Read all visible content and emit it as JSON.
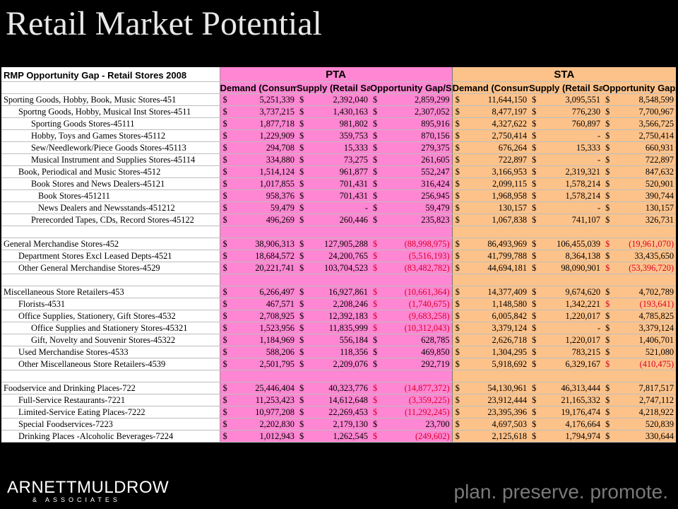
{
  "title": "Retail Market Potential",
  "table": {
    "caption": "RMP Opportunity Gap - Retail Stores 2008",
    "groups": {
      "pta": "PTA",
      "sta": "STA"
    },
    "columns": {
      "demand": "Demand (Consumer Expenditures)",
      "supply": "Supply (Retail Sales)",
      "opportunity": "Opportunity Gap/Surplus"
    },
    "currency_symbol": "$",
    "rows": [
      {
        "label": "Sporting Goods, Hobby, Book, Music Stores-451",
        "indent": 0,
        "pta": [
          "5,251,339",
          "2,392,040",
          "2,859,299"
        ],
        "sta": [
          "11,644,150",
          "3,095,551",
          "8,548,599"
        ]
      },
      {
        "label": "Sportng Goods, Hobby, Musical Inst Stores-4511",
        "indent": 1,
        "pta": [
          "3,737,215",
          "1,430,163",
          "2,307,052"
        ],
        "sta": [
          "8,477,197",
          "776,230",
          "7,700,967"
        ]
      },
      {
        "label": "Sporting Goods Stores-45111",
        "indent": 2,
        "pta": [
          "1,877,718",
          "981,802",
          "895,916"
        ],
        "sta": [
          "4,327,622",
          "760,897",
          "3,566,725"
        ]
      },
      {
        "label": "Hobby, Toys and Games Stores-45112",
        "indent": 2,
        "pta": [
          "1,229,909",
          "359,753",
          "870,156"
        ],
        "sta": [
          "2,750,414",
          "-",
          "2,750,414"
        ]
      },
      {
        "label": "Sew/Needlework/Piece Goods Stores-45113",
        "indent": 2,
        "pta": [
          "294,708",
          "15,333",
          "279,375"
        ],
        "sta": [
          "676,264",
          "15,333",
          "660,931"
        ]
      },
      {
        "label": "Musical Instrument and Supplies Stores-45114",
        "indent": 2,
        "pta": [
          "334,880",
          "73,275",
          "261,605"
        ],
        "sta": [
          "722,897",
          "-",
          "722,897"
        ]
      },
      {
        "label": "Book, Periodical and Music Stores-4512",
        "indent": 1,
        "pta": [
          "1,514,124",
          "961,877",
          "552,247"
        ],
        "sta": [
          "3,166,953",
          "2,319,321",
          "847,632"
        ]
      },
      {
        "label": "Book Stores and News Dealers-45121",
        "indent": 2,
        "pta": [
          "1,017,855",
          "701,431",
          "316,424"
        ],
        "sta": [
          "2,099,115",
          "1,578,214",
          "520,901"
        ]
      },
      {
        "label": "Book Stores-451211",
        "indent": 3,
        "pta": [
          "958,376",
          "701,431",
          "256,945"
        ],
        "sta": [
          "1,968,958",
          "1,578,214",
          "390,744"
        ]
      },
      {
        "label": "News Dealers and Newsstands-451212",
        "indent": 3,
        "pta": [
          "59,479",
          "-",
          "59,479"
        ],
        "sta": [
          "130,157",
          "-",
          "130,157"
        ]
      },
      {
        "label": "Prerecorded Tapes, CDs, Record Stores-45122",
        "indent": 2,
        "pta": [
          "496,269",
          "260,446",
          "235,823"
        ],
        "sta": [
          "1,067,838",
          "741,107",
          "326,731"
        ]
      },
      {
        "blank": true
      },
      {
        "label": "General Merchandise Stores-452",
        "indent": 0,
        "pta": [
          "38,906,313",
          "127,905,288",
          "(88,998,975)"
        ],
        "sta": [
          "86,493,969",
          "106,455,039",
          "(19,961,070)"
        ]
      },
      {
        "label": "Department Stores Excl Leased Depts-4521",
        "indent": 1,
        "pta": [
          "18,684,572",
          "24,200,765",
          "(5,516,193)"
        ],
        "sta": [
          "41,799,788",
          "8,364,138",
          "33,435,650"
        ]
      },
      {
        "label": "Other General Merchandise Stores-4529",
        "indent": 1,
        "pta": [
          "20,221,741",
          "103,704,523",
          "(83,482,782)"
        ],
        "sta": [
          "44,694,181",
          "98,090,901",
          "(53,396,720)"
        ]
      },
      {
        "blank": true
      },
      {
        "label": "Miscellaneous Store Retailers-453",
        "indent": 0,
        "pta": [
          "6,266,497",
          "16,927,861",
          "(10,661,364)"
        ],
        "sta": [
          "14,377,409",
          "9,674,620",
          "4,702,789"
        ]
      },
      {
        "label": "Florists-4531",
        "indent": 1,
        "pta": [
          "467,571",
          "2,208,246",
          "(1,740,675)"
        ],
        "sta": [
          "1,148,580",
          "1,342,221",
          "(193,641)"
        ]
      },
      {
        "label": "Office Supplies, Stationery, Gift Stores-4532",
        "indent": 1,
        "pta": [
          "2,708,925",
          "12,392,183",
          "(9,683,258)"
        ],
        "sta": [
          "6,005,842",
          "1,220,017",
          "4,785,825"
        ]
      },
      {
        "label": "Office Supplies and Stationery Stores-45321",
        "indent": 2,
        "pta": [
          "1,523,956",
          "11,835,999",
          "(10,312,043)"
        ],
        "sta": [
          "3,379,124",
          "-",
          "3,379,124"
        ]
      },
      {
        "label": "Gift, Novelty and Souvenir Stores-45322",
        "indent": 2,
        "pta": [
          "1,184,969",
          "556,184",
          "628,785"
        ],
        "sta": [
          "2,626,718",
          "1,220,017",
          "1,406,701"
        ]
      },
      {
        "label": "Used Merchandise Stores-4533",
        "indent": 1,
        "pta": [
          "588,206",
          "118,356",
          "469,850"
        ],
        "sta": [
          "1,304,295",
          "783,215",
          "521,080"
        ]
      },
      {
        "label": "Other Miscellaneous Store Retailers-4539",
        "indent": 1,
        "pta": [
          "2,501,795",
          "2,209,076",
          "292,719"
        ],
        "sta": [
          "5,918,692",
          "6,329,167",
          "(410,475)"
        ]
      },
      {
        "blank": true
      },
      {
        "label": "Foodservice and Drinking Places-722",
        "indent": 0,
        "pta": [
          "25,446,404",
          "40,323,776",
          "(14,877,372)"
        ],
        "sta": [
          "54,130,961",
          "46,313,444",
          "7,817,517"
        ]
      },
      {
        "label": "Full-Service Restaurants-7221",
        "indent": 1,
        "pta": [
          "11,253,423",
          "14,612,648",
          "(3,359,225)"
        ],
        "sta": [
          "23,912,444",
          "21,165,332",
          "2,747,112"
        ]
      },
      {
        "label": "Limited-Service Eating Places-7222",
        "indent": 1,
        "pta": [
          "10,977,208",
          "22,269,453",
          "(11,292,245)"
        ],
        "sta": [
          "23,395,396",
          "19,176,474",
          "4,218,922"
        ]
      },
      {
        "label": "Special Foodservices-7223",
        "indent": 1,
        "pta": [
          "2,202,830",
          "2,179,130",
          "23,700"
        ],
        "sta": [
          "4,697,503",
          "4,176,664",
          "520,839"
        ]
      },
      {
        "label": "Drinking Places -Alcoholic Beverages-7224",
        "indent": 1,
        "pta": [
          "1,012,943",
          "1,262,545",
          "(249,602)"
        ],
        "sta": [
          "2,125,618",
          "1,794,974",
          "330,644"
        ]
      }
    ]
  },
  "footer": {
    "logo_main": "ARNETTMULDROW",
    "logo_sub": "& ASSOCIATES",
    "tagline": "plan. preserve. promote."
  },
  "colors": {
    "pta_fill": "#ff86d2",
    "sta_fill": "#fdc28a",
    "negative": "#d8002a",
    "background": "#000000"
  }
}
